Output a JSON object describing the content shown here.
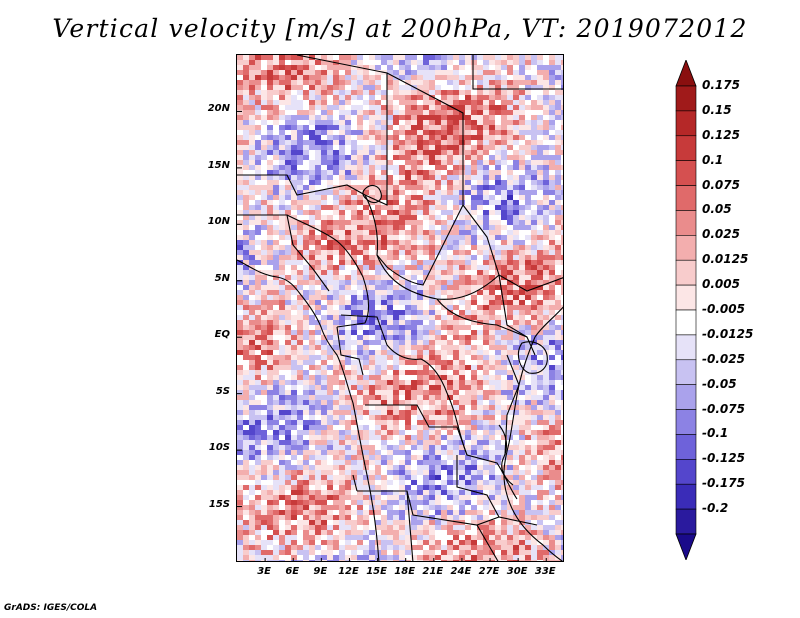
{
  "title": "Vertical velocity [m/s] at 200hPa, VT: 2019072012",
  "credit": "GrADS: IGES/COLA",
  "map": {
    "lon_range": [
      0,
      35
    ],
    "lat_range": [
      -20,
      25
    ],
    "lat_ticks": [
      {
        "lat": 20,
        "label": "20N"
      },
      {
        "lat": 15,
        "label": "15N"
      },
      {
        "lat": 10,
        "label": "10N"
      },
      {
        "lat": 5,
        "label": "5N"
      },
      {
        "lat": 0,
        "label": "EQ"
      },
      {
        "lat": -5,
        "label": "5S"
      },
      {
        "lat": -10,
        "label": "10S"
      },
      {
        "lat": -15,
        "label": "15S"
      }
    ],
    "lon_ticks": [
      {
        "lon": 3,
        "label": "3E"
      },
      {
        "lon": 6,
        "label": "6E"
      },
      {
        "lon": 9,
        "label": "9E"
      },
      {
        "lon": 12,
        "label": "12E"
      },
      {
        "lon": 15,
        "label": "15E"
      },
      {
        "lon": 18,
        "label": "18E"
      },
      {
        "lon": 21,
        "label": "21E"
      },
      {
        "lon": 24,
        "label": "24E"
      },
      {
        "lon": 27,
        "label": "27E"
      },
      {
        "lon": 30,
        "label": "30E"
      },
      {
        "lon": 33,
        "label": "33E"
      }
    ]
  },
  "colorbar": {
    "levels": [
      {
        "label": "0.175",
        "color": "#a01a1a"
      },
      {
        "label": "0.15",
        "color": "#b52828"
      },
      {
        "label": "0.125",
        "color": "#c73a3a"
      },
      {
        "label": "0.1",
        "color": "#d55050"
      },
      {
        "label": "0.075",
        "color": "#e06a6a"
      },
      {
        "label": "0.05",
        "color": "#ea8c8c"
      },
      {
        "label": "0.025",
        "color": "#f3aeae"
      },
      {
        "label": "0.0125",
        "color": "#f8cccc"
      },
      {
        "label": "0.005",
        "color": "#fce6e6"
      },
      {
        "label": "-0.005",
        "color": "#ffffff"
      },
      {
        "label": "-0.0125",
        "color": "#e6e2f8"
      },
      {
        "label": "-0.025",
        "color": "#c8c2f2"
      },
      {
        "label": "-0.05",
        "color": "#aaa2ec"
      },
      {
        "label": "-0.075",
        "color": "#8c82e4"
      },
      {
        "label": "-0.1",
        "color": "#6e62da"
      },
      {
        "label": "-0.125",
        "color": "#5446cc"
      },
      {
        "label": "-0.175",
        "color": "#3a2cb8"
      },
      {
        "label": "-0.2",
        "color": "#2a1a9e"
      }
    ],
    "top_arrow_color": "#8a0f0f",
    "bottom_arrow_color": "#1a0a8a"
  }
}
